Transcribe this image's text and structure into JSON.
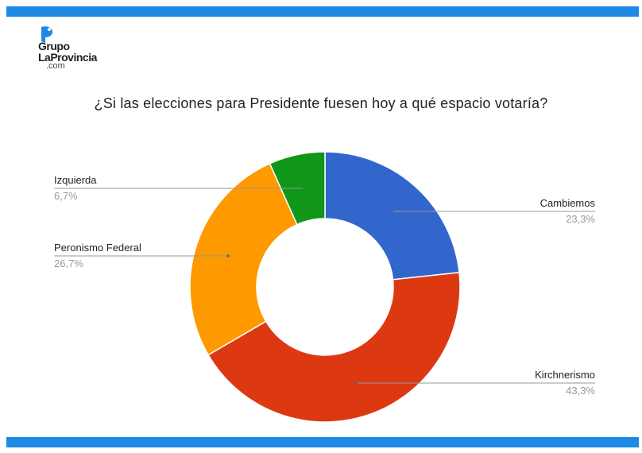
{
  "brand": {
    "line1": "Grupo",
    "line2": "LaProvincia",
    "line3": ".com",
    "bar_color": "#1e88e5",
    "mark_color": "#1e88e5"
  },
  "chart_data": {
    "type": "pie",
    "donut": true,
    "title": "¿Si las elecciones para Presidente fuesen hoy a qué espacio votaría?",
    "categories": [
      "Cambiemos",
      "Kirchnerismo",
      "Peronismo Federal",
      "Izquierda"
    ],
    "values": [
      23.3,
      43.3,
      26.7,
      6.7
    ],
    "value_labels": [
      "23,3%",
      "43,3%",
      "26,7%",
      "6,7%"
    ],
    "colors": [
      "#3366cc",
      "#dc3912",
      "#ff9900",
      "#109618"
    ],
    "legend": "labeled"
  }
}
